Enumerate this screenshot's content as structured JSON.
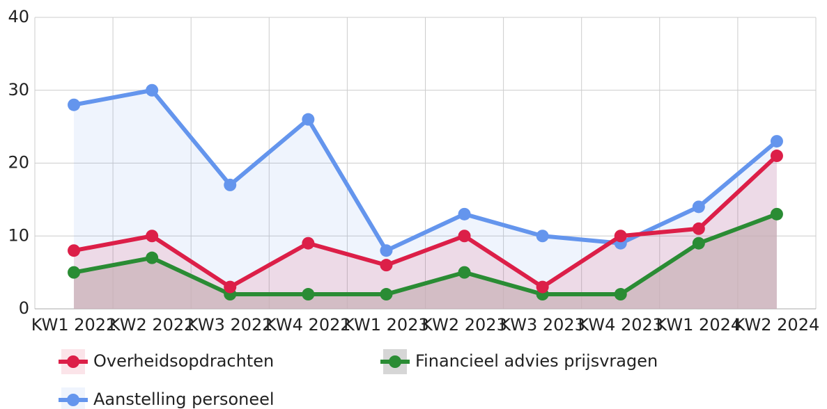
{
  "chart_data": {
    "type": "line",
    "categories": [
      "KW1 2022",
      "KW2 2022",
      "KW3 2022",
      "KW4 2022",
      "KW1 2023",
      "KW2 2023",
      "KW3 2023",
      "KW4 2023",
      "KW1 2024",
      "KW2 2024"
    ],
    "series": [
      {
        "name": "Overheidsopdrachten",
        "color": "#dc1f48",
        "fill": "rgba(220,31,72,0.12)",
        "values": [
          8,
          10,
          3,
          9,
          6,
          10,
          3,
          10,
          11,
          21
        ]
      },
      {
        "name": "Financieel advies prijsvragen",
        "color": "#2a8c34",
        "fill": "rgba(200,200,200,0.75)",
        "values": [
          5,
          7,
          2,
          2,
          2,
          5,
          2,
          2,
          9,
          13
        ]
      },
      {
        "name": "Aanstelling personeel",
        "color": "#6495ed",
        "fill": "rgba(100,149,237,0.1)",
        "values": [
          28,
          30,
          17,
          26,
          8,
          13,
          10,
          9,
          14,
          23
        ]
      }
    ],
    "ylim": [
      0,
      40
    ],
    "yticks": [
      0,
      10,
      20,
      30,
      40
    ],
    "grid": true
  }
}
